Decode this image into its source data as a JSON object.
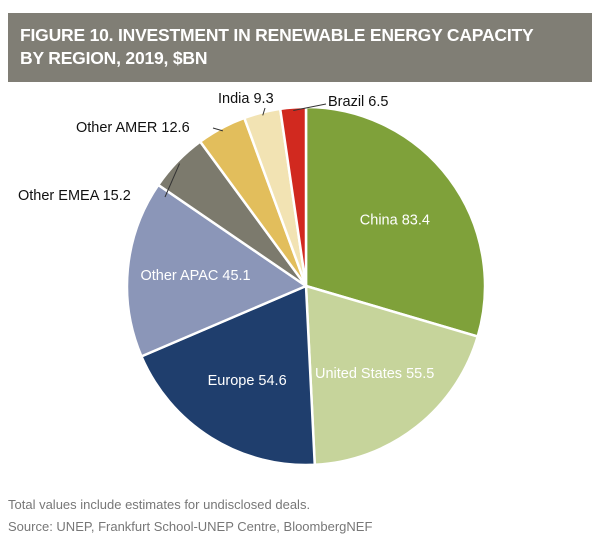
{
  "chart_data": {
    "type": "pie",
    "title": "FIGURE 10. INVESTMENT IN RENEWABLE ENERGY CAPACITY BY REGION, 2019, $BN",
    "title_lines": [
      "FIGURE 10. INVESTMENT IN RENEWABLE ENERGY CAPACITY",
      "BY REGION, 2019, $BN"
    ],
    "start": "12 o'clock, clockwise",
    "slices": [
      {
        "label": "China",
        "value": 83.4,
        "text": "China 83.4",
        "color": "#7fa13a",
        "label_inside": true
      },
      {
        "label": "United States",
        "value": 55.5,
        "text": "United States 55.5",
        "color": "#c6d49b",
        "label_inside": true
      },
      {
        "label": "Europe",
        "value": 54.6,
        "text": "Europe 54.6",
        "color": "#1f3e6d",
        "label_inside": true
      },
      {
        "label": "Other APAC",
        "value": 45.1,
        "text": "Other APAC 45.1",
        "color": "#8b96b8",
        "label_inside": true
      },
      {
        "label": "Other EMEA",
        "value": 15.2,
        "text": "Other EMEA 15.2",
        "color": "#7c7a6d",
        "label_inside": false
      },
      {
        "label": "Other AMER",
        "value": 12.6,
        "text": "Other AMER 12.6",
        "color": "#e2be5c",
        "label_inside": false
      },
      {
        "label": "India",
        "value": 9.3,
        "text": "India 9.3",
        "color": "#f2e3b3",
        "label_inside": false
      },
      {
        "label": "Brazil",
        "value": 6.5,
        "text": "Brazil 6.5",
        "color": "#d1291f",
        "label_inside": false
      }
    ]
  },
  "footnotes": {
    "note": "Total values include estimates for undisclosed deals.",
    "source": "Source: UNEP, Frankfurt School-UNEP Centre, BloombergNEF"
  }
}
